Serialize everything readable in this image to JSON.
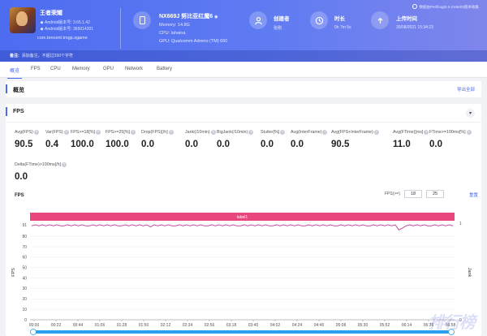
{
  "app": {
    "name": "王者荣耀",
    "android_version": "Android版本号: 3.65.1.42",
    "android_build": "Android版本号: 365014201",
    "package": "com.tencent.tmgp.sgame"
  },
  "device": {
    "name": "NX669J 努比亚红魔6",
    "memory": "Memory: 14.8G",
    "cpu": "CPU: lahaina",
    "gpu": "GPU: Qualcomm Adreno (TM) 660"
  },
  "creator": {
    "label": "创建者",
    "value": "张刚"
  },
  "duration": {
    "label": "时长",
    "value": "0h 7m 5s"
  },
  "upload": {
    "label": "上传时间",
    "value": "30/08/2021 15:34:23"
  },
  "version_note": "数据由PerfDog(6.0.210830)版本收集",
  "remark": {
    "label": "备注:",
    "text": "添加备注，不超过200个字符"
  },
  "tabs": [
    "概览",
    "FPS",
    "CPU",
    "Memory",
    "GPU",
    "Network",
    "Battery"
  ],
  "overview": {
    "title": "概览",
    "export": "导出全部"
  },
  "fps_panel": {
    "title": "FPS",
    "metrics": [
      {
        "label": "Avg(FPS)",
        "value": "90.5"
      },
      {
        "label": "Var(FPS)",
        "value": "0.4"
      },
      {
        "label": "FPS>=18[%]",
        "value": "100.0"
      },
      {
        "label": "FPS>=25[%]",
        "value": "100.0"
      },
      {
        "label": "Drop(FPS)[/h]",
        "value": "0.0"
      },
      {
        "label": "Jank(/10min)",
        "value": "0.0"
      },
      {
        "label": "BigJank(/10min)",
        "value": "0.0"
      },
      {
        "label": "Stutter[%]",
        "value": "0.0"
      },
      {
        "label": "Avg(InterFrame)",
        "value": "0.0"
      },
      {
        "label": "Avg(FPS+InterFrame)",
        "value": "90.5"
      },
      {
        "label": "Avg(FTime)[ms]",
        "value": "11.0"
      },
      {
        "label": "FTime>=100ms[%]",
        "value": "0.0"
      },
      {
        "label": "Delta(FTime)>100ms[/h]",
        "value": "0.0"
      }
    ],
    "chart_title": "FPS",
    "threshold_label": "FPS(>=)",
    "threshold_1": "18",
    "threshold_2": "25",
    "reset": "重置"
  },
  "chart_data": {
    "type": "line",
    "title": "FPS",
    "band_label": "label1",
    "ylabel": "FPS",
    "ylabel_right": "Jank",
    "y_ticks": [
      0,
      10,
      20,
      30,
      40,
      50,
      60,
      70,
      80,
      91
    ],
    "ylim": [
      0,
      91
    ],
    "y2_ticks": [
      0,
      1
    ],
    "x_ticks": [
      "00:00",
      "00:22",
      "00:44",
      "01:06",
      "01:28",
      "01:50",
      "02:12",
      "02:34",
      "02:56",
      "03:18",
      "03:40",
      "04:02",
      "04:24",
      "04:46",
      "05:08",
      "05:30",
      "05:52",
      "06:14",
      "06:36",
      "06:58"
    ],
    "series": [
      {
        "name": "FPS",
        "color": "#c3399a",
        "values": [
          90,
          91,
          90,
          91,
          90,
          91,
          90,
          91,
          90,
          90,
          91,
          90,
          91,
          90,
          91,
          90,
          90,
          91,
          90,
          91,
          90,
          91,
          90,
          91,
          90,
          90,
          91,
          90,
          91,
          90,
          91,
          90,
          91,
          89,
          91,
          90,
          91,
          90,
          91,
          90,
          90,
          91,
          90,
          91,
          90,
          91,
          90,
          91,
          90,
          90,
          91,
          90,
          91,
          90,
          91,
          90,
          91,
          90,
          90,
          91,
          90,
          91,
          90,
          91,
          90,
          91,
          90,
          90,
          91,
          90,
          91,
          90,
          91,
          90,
          91,
          90,
          90,
          91,
          90,
          91,
          90,
          91,
          90,
          91,
          90,
          90,
          91,
          90,
          91,
          90,
          91,
          90,
          91,
          90,
          90,
          91,
          90,
          91,
          90,
          91,
          90,
          91,
          86,
          88,
          90,
          91,
          90,
          91,
          90,
          91,
          90,
          90,
          91,
          90,
          91,
          90,
          91,
          90
        ]
      },
      {
        "name": "Jank",
        "color": "#f0813a",
        "values": []
      },
      {
        "name": "BigJank",
        "color": "#c0392b",
        "values": []
      },
      {
        "name": "Stutter",
        "color": "#4a90d9",
        "values": []
      },
      {
        "name": "InterFrame",
        "color": "#6fc3e8",
        "values": []
      }
    ],
    "legend_position": "bottom",
    "grid": true
  },
  "watermark": "排行榜"
}
